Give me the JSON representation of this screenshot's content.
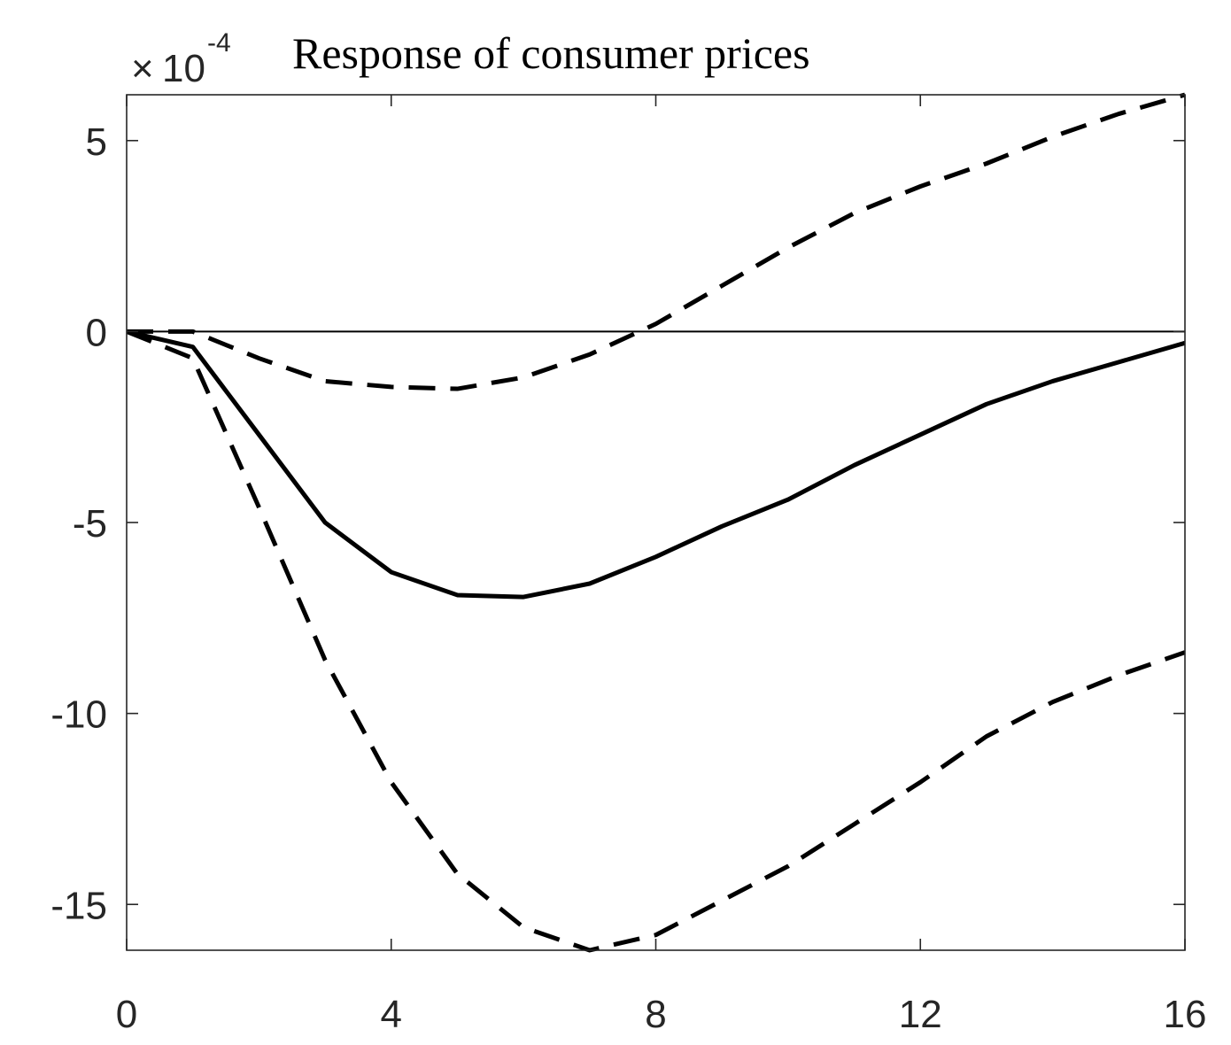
{
  "chart_data": {
    "type": "line",
    "title": "Response of consumer prices",
    "scale_factor": {
      "times": "×",
      "base": "10",
      "exponent": "-4"
    },
    "xlabel": "",
    "ylabel": "",
    "xlim": [
      0,
      16
    ],
    "ylim": [
      -16.2,
      6.2
    ],
    "x_ticks": [
      0,
      4,
      8,
      12,
      16
    ],
    "y_ticks": [
      -15,
      -10,
      -5,
      0,
      5
    ],
    "grid": false,
    "zero_line": true,
    "x": [
      0,
      1,
      2,
      3,
      4,
      5,
      6,
      7,
      8,
      9,
      10,
      11,
      12,
      13,
      14,
      15,
      16
    ],
    "series": [
      {
        "style": "solid",
        "values": [
          0,
          -0.4,
          -2.7,
          -5.0,
          -6.3,
          -6.9,
          -6.95,
          -6.6,
          -5.9,
          -5.1,
          -4.4,
          -3.5,
          -2.7,
          -1.9,
          -1.3,
          -0.8,
          -0.3
        ]
      },
      {
        "style": "dashed",
        "values": [
          0,
          0,
          -0.7,
          -1.3,
          -1.45,
          -1.5,
          -1.2,
          -0.6,
          0.2,
          1.2,
          2.2,
          3.1,
          3.8,
          4.4,
          5.1,
          5.7,
          6.2
        ]
      },
      {
        "style": "dashed",
        "values": [
          0,
          -0.7,
          -4.6,
          -8.6,
          -11.8,
          -14.2,
          -15.6,
          -16.2,
          -15.8,
          -14.9,
          -14.0,
          -12.9,
          -11.8,
          -10.6,
          -9.7,
          -9.0,
          -8.4
        ]
      }
    ],
    "colors": {
      "lines": "#000000",
      "axes": "#262626"
    }
  }
}
